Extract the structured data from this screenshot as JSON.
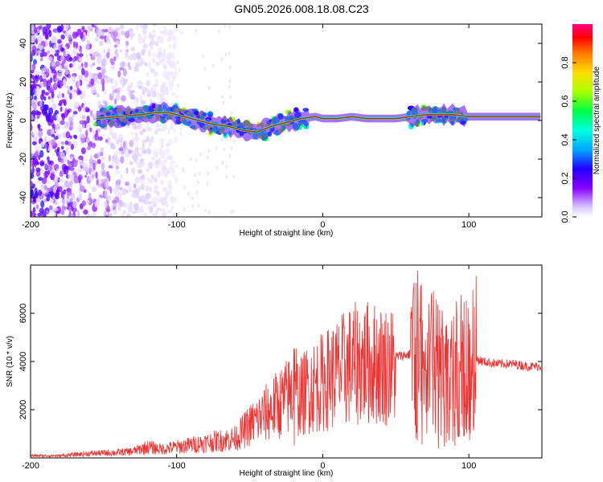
{
  "chart_data": [
    {
      "type": "heatmap",
      "title": "GN05.2026.008.18.08.C23",
      "xlabel": "Height of straight line (km)",
      "ylabel": "Frequency (Hz)",
      "xlim": [
        -200,
        150
      ],
      "ylim": [
        -50,
        50
      ],
      "x_ticks": [
        -200,
        -100,
        0,
        100
      ],
      "y_ticks": [
        -40,
        -20,
        0,
        20,
        40
      ],
      "colorbar": {
        "label": "Normalized spectral amplitude",
        "ticks": [
          0.0,
          0.2,
          0.4,
          0.6,
          0.8
        ],
        "range": [
          0,
          1
        ],
        "colormap": [
          "#ffffff",
          "#d8c8ff",
          "#8800ff",
          "#2200ff",
          "#00aaff",
          "#00ffdd",
          "#00ff44",
          "#aaff00",
          "#ffdd00",
          "#ff7700",
          "#ff0000",
          "#ff0080"
        ]
      },
      "ridge": {
        "x": [
          -155,
          -140,
          -125,
          -115,
          -105,
          -95,
          -85,
          -75,
          -65,
          -55,
          -45,
          -35,
          -25,
          -15,
          -5,
          0,
          10,
          20,
          30,
          40,
          50,
          60,
          70,
          80,
          90,
          100,
          120,
          150
        ],
        "frequency": [
          1,
          2,
          3,
          4,
          4,
          2,
          0,
          -2,
          -3,
          -5,
          -6,
          -3,
          -1,
          1,
          2,
          1,
          1,
          2,
          1,
          1,
          1,
          2,
          3,
          3,
          3,
          2,
          2,
          2
        ]
      },
      "noise_region_x": [
        -200,
        -130
      ]
    },
    {
      "type": "line",
      "xlabel": "Height of straight line (km)",
      "ylabel": "SNR (10 * v/v)",
      "xlim": [
        -200,
        150
      ],
      "ylim": [
        0,
        8000
      ],
      "x_ticks": [
        -200,
        -100,
        0,
        100
      ],
      "y_ticks": [
        2000,
        4000,
        6000
      ],
      "color": "#ee3333",
      "series": [
        {
          "name": "SNR",
          "x": [
            -200,
            -180,
            -160,
            -140,
            -130,
            -120,
            -110,
            -100,
            -90,
            -80,
            -70,
            -60,
            -50,
            -40,
            -30,
            -20,
            -15,
            -10,
            0,
            10,
            20,
            30,
            40,
            50,
            60,
            65,
            70,
            75,
            80,
            85,
            90,
            95,
            100,
            105,
            110,
            120,
            130,
            140,
            150
          ],
          "values": [
            100,
            100,
            200,
            250,
            300,
            500,
            400,
            500,
            600,
            700,
            800,
            900,
            1500,
            2000,
            2500,
            3000,
            2800,
            3200,
            3500,
            3900,
            4300,
            4400,
            4300,
            4200,
            4300,
            4300,
            3500,
            4200,
            3500,
            4200,
            3500,
            4000,
            3800,
            4100,
            4000,
            3900,
            3900,
            3800,
            3800
          ]
        }
      ],
      "spike_regions": [
        {
          "x": [
            -20,
            -18
          ],
          "peak": 5800
        },
        {
          "x": [
            60,
            105
          ],
          "peak": 7800
        }
      ]
    }
  ]
}
